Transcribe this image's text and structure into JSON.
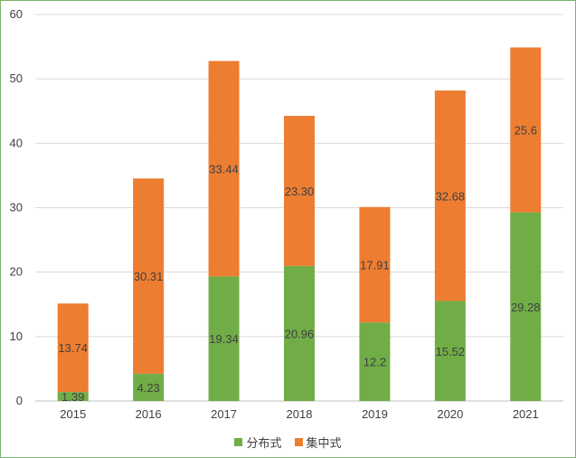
{
  "chart_data": {
    "type": "bar",
    "stacked": true,
    "title": "",
    "xlabel": "",
    "ylabel": "",
    "ylim": [
      0,
      60
    ],
    "yticks": [
      "0",
      "10",
      "20",
      "30",
      "40",
      "50",
      "60"
    ],
    "grid": true,
    "legend_position": "bottom",
    "categories": [
      "2015",
      "2016",
      "2017",
      "2018",
      "2019",
      "2020",
      "2021"
    ],
    "series": [
      {
        "name": "分布式",
        "color": "#70ad47",
        "values": [
          1.39,
          4.23,
          19.34,
          20.96,
          12.2,
          15.52,
          29.28
        ],
        "labels": [
          "1.39",
          "4.23",
          "19.34",
          "20.96",
          "12.2",
          "15.52",
          "29.28"
        ]
      },
      {
        "name": "集中式",
        "color": "#ed7d31",
        "values": [
          13.74,
          30.31,
          33.44,
          23.3,
          17.91,
          32.68,
          25.6
        ],
        "labels": [
          "13.74",
          "30.31",
          "33.44",
          "23.30",
          "17.91",
          "32.68",
          "25.6"
        ]
      }
    ]
  }
}
